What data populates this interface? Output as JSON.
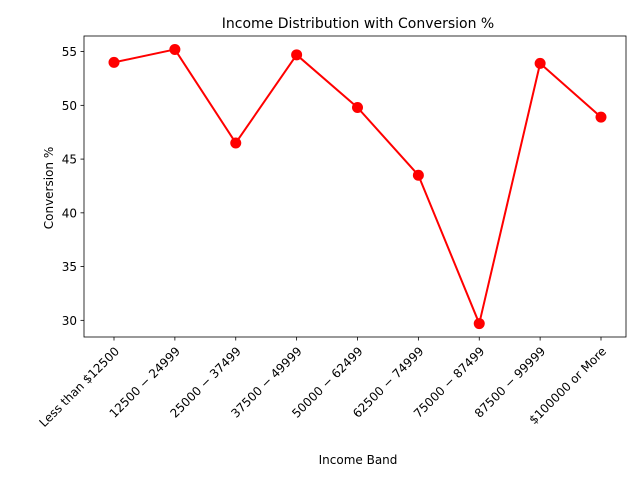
{
  "chart_data": {
    "type": "line",
    "title": "Income Distribution with Conversion %",
    "xlabel": "Income Band",
    "ylabel": "Conversion %",
    "categories": [
      "Less than $12500",
      "$12500 - $24999",
      "$25000 - $37499",
      "$37500 - $49999",
      "$50000 - $62499",
      "$62500 - $74999",
      "$75000 - $87499",
      "$87500 - $99999",
      "$100000 or More"
    ],
    "category_tick_labels": [
      "Less than $12500",
      "12500 − 24999",
      "25000 − 37499",
      "37500 − 49999",
      "50000 − 62499",
      "62500 − 74999",
      "75000 − 87499",
      "87500 − 99999",
      "$100000 or More"
    ],
    "series": [
      {
        "values": [
          54.0,
          55.2,
          46.5,
          54.7,
          49.8,
          43.5,
          29.7,
          53.9,
          48.9
        ]
      }
    ],
    "yticks": [
      30,
      35,
      40,
      45,
      50,
      55
    ],
    "ylim": [
      28.45,
      56.45
    ],
    "line_color": "#ff0000",
    "marker_color": "#ff0000",
    "grid": false,
    "legend": "none"
  }
}
